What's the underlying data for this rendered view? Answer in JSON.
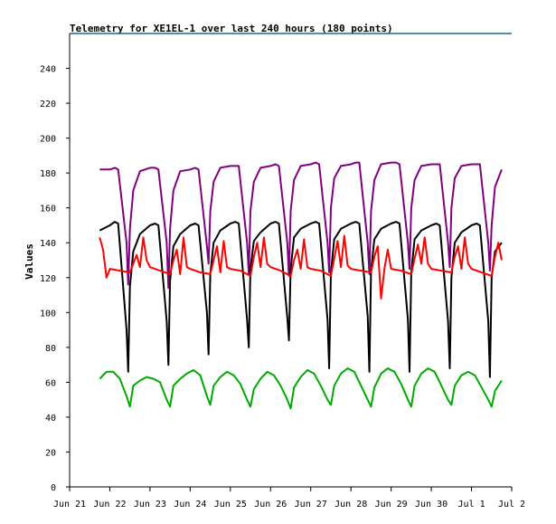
{
  "chart_data": {
    "type": "line",
    "title": "Telemetry for XE1EL-1 over last 240 hours (180 points)",
    "xlabel": "",
    "ylabel": "Values",
    "ylim": [
      0,
      260
    ],
    "yticks": [
      0,
      20,
      40,
      60,
      80,
      100,
      120,
      140,
      160,
      180,
      200,
      220,
      240
    ],
    "xlim": [
      "2016-06-21",
      "2016-07-02"
    ],
    "xticks": [
      "Jun 21",
      "Jun 22",
      "Jun 23",
      "Jun 24",
      "Jun 25",
      "Jun 26",
      "Jun 27",
      "Jun 28",
      "Jun 29",
      "Jun 30",
      "Jul 1",
      "Jul 2"
    ],
    "grid": false,
    "legend": "none",
    "series": [
      {
        "color": "#800080",
        "x": [
          "2016-06-21 18:00",
          "2016-06-22 00:00",
          "2016-06-22 03:00",
          "2016-06-22 05:00",
          "2016-06-22 10:00",
          "2016-06-22 11:00",
          "2016-06-22 12:00",
          "2016-06-22 14:00",
          "2016-06-22 18:00",
          "2016-06-23 00:00",
          "2016-06-23 03:00",
          "2016-06-23 05:00",
          "2016-06-23 10:00",
          "2016-06-23 11:00",
          "2016-06-23 12:00",
          "2016-06-23 14:00",
          "2016-06-23 18:00",
          "2016-06-24 00:00",
          "2016-06-24 03:00",
          "2016-06-24 05:00",
          "2016-06-24 10:00",
          "2016-06-24 11:00",
          "2016-06-24 12:00",
          "2016-06-24 14:00",
          "2016-06-24 18:00",
          "2016-06-25 00:00",
          "2016-06-25 03:00",
          "2016-06-25 05:00",
          "2016-06-25 10:00",
          "2016-06-25 11:00",
          "2016-06-25 12:00",
          "2016-06-25 14:00",
          "2016-06-25 18:00",
          "2016-06-26 00:00",
          "2016-06-26 03:00",
          "2016-06-26 05:00",
          "2016-06-26 10:00",
          "2016-06-26 11:00",
          "2016-06-26 12:00",
          "2016-06-26 14:00",
          "2016-06-26 18:00",
          "2016-06-27 00:00",
          "2016-06-27 03:00",
          "2016-06-27 05:00",
          "2016-06-27 10:00",
          "2016-06-27 11:00",
          "2016-06-27 12:00",
          "2016-06-27 14:00",
          "2016-06-27 18:00",
          "2016-06-28 00:00",
          "2016-06-28 03:00",
          "2016-06-28 05:00",
          "2016-06-28 10:00",
          "2016-06-28 11:00",
          "2016-06-28 12:00",
          "2016-06-28 14:00",
          "2016-06-28 18:00",
          "2016-06-29 00:00",
          "2016-06-29 03:00",
          "2016-06-29 05:00",
          "2016-06-29 10:00",
          "2016-06-29 11:00",
          "2016-06-29 12:00",
          "2016-06-29 14:00",
          "2016-06-29 18:00",
          "2016-06-30 00:00",
          "2016-06-30 03:00",
          "2016-06-30 05:00",
          "2016-06-30 10:00",
          "2016-06-30 11:00",
          "2016-06-30 12:00",
          "2016-06-30 14:00",
          "2016-06-30 18:00",
          "2016-07-01 00:00",
          "2016-07-01 03:00",
          "2016-07-01 05:00",
          "2016-07-01 10:00",
          "2016-07-01 11:00",
          "2016-07-01 12:00",
          "2016-07-01 14:00",
          "2016-07-01 18:00"
        ],
        "y": [
          182,
          182,
          183,
          182,
          140,
          116,
          148,
          170,
          181,
          183,
          183,
          182,
          140,
          114,
          148,
          170,
          181,
          182,
          183,
          182,
          138,
          128,
          158,
          175,
          183,
          184,
          184,
          184,
          140,
          122,
          158,
          175,
          183,
          184,
          185,
          184,
          140,
          121,
          158,
          176,
          184,
          185,
          186,
          185,
          140,
          123,
          160,
          177,
          184,
          185,
          186,
          186,
          140,
          122,
          158,
          176,
          185,
          186,
          186,
          185,
          140,
          125,
          160,
          176,
          184,
          185,
          185,
          185,
          140,
          126,
          160,
          177,
          184,
          185,
          185,
          185,
          140,
          124,
          150,
          172,
          182
        ]
      },
      {
        "color": "#000000",
        "x": [
          "2016-06-21 18:00",
          "2016-06-22 00:00",
          "2016-06-22 03:00",
          "2016-06-22 05:00",
          "2016-06-22 10:00",
          "2016-06-22 11:00",
          "2016-06-22 12:00",
          "2016-06-22 14:00",
          "2016-06-22 18:00",
          "2016-06-23 00:00",
          "2016-06-23 03:00",
          "2016-06-23 05:00",
          "2016-06-23 10:00",
          "2016-06-23 11:00",
          "2016-06-23 12:00",
          "2016-06-23 14:00",
          "2016-06-23 18:00",
          "2016-06-24 00:00",
          "2016-06-24 03:00",
          "2016-06-24 05:00",
          "2016-06-24 10:00",
          "2016-06-24 11:00",
          "2016-06-24 12:00",
          "2016-06-24 14:00",
          "2016-06-24 18:00",
          "2016-06-25 00:00",
          "2016-06-25 03:00",
          "2016-06-25 05:00",
          "2016-06-25 10:00",
          "2016-06-25 11:00",
          "2016-06-25 12:00",
          "2016-06-25 14:00",
          "2016-06-25 18:00",
          "2016-06-26 00:00",
          "2016-06-26 03:00",
          "2016-06-26 05:00",
          "2016-06-26 10:00",
          "2016-06-26 11:00",
          "2016-06-26 12:00",
          "2016-06-26 14:00",
          "2016-06-26 18:00",
          "2016-06-27 00:00",
          "2016-06-27 03:00",
          "2016-06-27 05:00",
          "2016-06-27 10:00",
          "2016-06-27 11:00",
          "2016-06-27 12:00",
          "2016-06-27 14:00",
          "2016-06-27 18:00",
          "2016-06-28 00:00",
          "2016-06-28 03:00",
          "2016-06-28 05:00",
          "2016-06-28 10:00",
          "2016-06-28 11:00",
          "2016-06-28 12:00",
          "2016-06-28 14:00",
          "2016-06-28 18:00",
          "2016-06-29 00:00",
          "2016-06-29 03:00",
          "2016-06-29 05:00",
          "2016-06-29 10:00",
          "2016-06-29 11:00",
          "2016-06-29 12:00",
          "2016-06-29 14:00",
          "2016-06-29 18:00",
          "2016-06-30 00:00",
          "2016-06-30 03:00",
          "2016-06-30 05:00",
          "2016-06-30 10:00",
          "2016-06-30 11:00",
          "2016-06-30 12:00",
          "2016-06-30 14:00",
          "2016-06-30 18:00",
          "2016-07-01 00:00",
          "2016-07-01 03:00",
          "2016-07-01 05:00",
          "2016-07-01 10:00",
          "2016-07-01 11:00",
          "2016-07-01 12:00",
          "2016-07-01 14:00",
          "2016-07-01 18:00"
        ],
        "y": [
          147,
          150,
          152,
          151,
          90,
          66,
          115,
          135,
          145,
          150,
          151,
          150,
          95,
          70,
          118,
          138,
          145,
          150,
          151,
          150,
          100,
          76,
          122,
          140,
          147,
          151,
          152,
          151,
          96,
          80,
          125,
          141,
          146,
          151,
          152,
          151,
          97,
          84,
          125,
          143,
          148,
          151,
          152,
          151,
          96,
          68,
          123,
          142,
          148,
          151,
          152,
          151,
          98,
          66,
          124,
          142,
          148,
          151,
          152,
          151,
          96,
          66,
          123,
          142,
          147,
          150,
          151,
          150,
          95,
          68,
          120,
          140,
          146,
          150,
          151,
          150,
          95,
          63,
          120,
          135,
          140
        ]
      },
      {
        "color": "#ff0000",
        "x": [
          "2016-06-21 18:00",
          "2016-06-21 20:00",
          "2016-06-21 22:00",
          "2016-06-22 00:00",
          "2016-06-22 06:00",
          "2016-06-22 12:00",
          "2016-06-22 14:00",
          "2016-06-22 16:00",
          "2016-06-22 18:00",
          "2016-06-22 20:00",
          "2016-06-22 22:00",
          "2016-06-23 00:00",
          "2016-06-23 06:00",
          "2016-06-23 12:00",
          "2016-06-23 14:00",
          "2016-06-23 16:00",
          "2016-06-23 18:00",
          "2016-06-23 20:00",
          "2016-06-23 22:00",
          "2016-06-24 00:00",
          "2016-06-24 06:00",
          "2016-06-24 12:00",
          "2016-06-24 14:00",
          "2016-06-24 16:00",
          "2016-06-24 18:00",
          "2016-06-24 20:00",
          "2016-06-24 22:00",
          "2016-06-25 00:00",
          "2016-06-25 06:00",
          "2016-06-25 12:00",
          "2016-06-25 14:00",
          "2016-06-25 16:00",
          "2016-06-25 18:00",
          "2016-06-25 20:00",
          "2016-06-25 22:00",
          "2016-06-26 00:00",
          "2016-06-26 06:00",
          "2016-06-26 12:00",
          "2016-06-26 14:00",
          "2016-06-26 16:00",
          "2016-06-26 18:00",
          "2016-06-26 20:00",
          "2016-06-26 22:00",
          "2016-06-27 00:00",
          "2016-06-27 06:00",
          "2016-06-27 12:00",
          "2016-06-27 14:00",
          "2016-06-27 16:00",
          "2016-06-27 18:00",
          "2016-06-27 20:00",
          "2016-06-27 22:00",
          "2016-06-28 00:00",
          "2016-06-28 06:00",
          "2016-06-28 12:00",
          "2016-06-28 14:00",
          "2016-06-28 16:00",
          "2016-06-28 18:00",
          "2016-06-28 20:00",
          "2016-06-28 22:00",
          "2016-06-29 00:00",
          "2016-06-29 06:00",
          "2016-06-29 12:00",
          "2016-06-29 14:00",
          "2016-06-29 16:00",
          "2016-06-29 18:00",
          "2016-06-29 20:00",
          "2016-06-29 22:00",
          "2016-06-30 00:00",
          "2016-06-30 06:00",
          "2016-06-30 12:00",
          "2016-06-30 14:00",
          "2016-06-30 16:00",
          "2016-06-30 18:00",
          "2016-06-30 20:00",
          "2016-06-30 22:00",
          "2016-07-01 00:00",
          "2016-07-01 06:00",
          "2016-07-01 12:00",
          "2016-07-01 14:00",
          "2016-07-01 16:00",
          "2016-07-01 18:00"
        ],
        "y": [
          143,
          136,
          120,
          125,
          124,
          123,
          128,
          133,
          126,
          143,
          130,
          126,
          124,
          122,
          130,
          136,
          122,
          143,
          126,
          125,
          123,
          122,
          130,
          138,
          123,
          141,
          126,
          125,
          124,
          121,
          132,
          140,
          126,
          143,
          128,
          126,
          124,
          121,
          130,
          136,
          125,
          142,
          126,
          125,
          124,
          121,
          131,
          141,
          126,
          144,
          127,
          125,
          124,
          123,
          132,
          138,
          108,
          125,
          136,
          125,
          124,
          122,
          131,
          139,
          128,
          143,
          128,
          125,
          124,
          123,
          132,
          138,
          125,
          143,
          128,
          125,
          123,
          121,
          132,
          140,
          130
        ]
      },
      {
        "color": "#00aa00",
        "x": [
          "2016-06-21 18:00",
          "2016-06-21 22:00",
          "2016-06-22 02:00",
          "2016-06-22 06:00",
          "2016-06-22 10:00",
          "2016-06-22 12:00",
          "2016-06-22 14:00",
          "2016-06-22 18:00",
          "2016-06-22 22:00",
          "2016-06-23 02:00",
          "2016-06-23 06:00",
          "2016-06-23 10:00",
          "2016-06-23 12:00",
          "2016-06-23 14:00",
          "2016-06-23 18:00",
          "2016-06-23 22:00",
          "2016-06-24 02:00",
          "2016-06-24 06:00",
          "2016-06-24 10:00",
          "2016-06-24 12:00",
          "2016-06-24 14:00",
          "2016-06-24 18:00",
          "2016-06-24 22:00",
          "2016-06-25 02:00",
          "2016-06-25 06:00",
          "2016-06-25 10:00",
          "2016-06-25 12:00",
          "2016-06-25 14:00",
          "2016-06-25 18:00",
          "2016-06-25 22:00",
          "2016-06-26 02:00",
          "2016-06-26 06:00",
          "2016-06-26 10:00",
          "2016-06-26 12:00",
          "2016-06-26 14:00",
          "2016-06-26 18:00",
          "2016-06-26 22:00",
          "2016-06-27 02:00",
          "2016-06-27 06:00",
          "2016-06-27 10:00",
          "2016-06-27 12:00",
          "2016-06-27 14:00",
          "2016-06-27 18:00",
          "2016-06-27 22:00",
          "2016-06-28 02:00",
          "2016-06-28 06:00",
          "2016-06-28 10:00",
          "2016-06-28 12:00",
          "2016-06-28 14:00",
          "2016-06-28 18:00",
          "2016-06-28 22:00",
          "2016-06-29 02:00",
          "2016-06-29 06:00",
          "2016-06-29 10:00",
          "2016-06-29 12:00",
          "2016-06-29 14:00",
          "2016-06-29 18:00",
          "2016-06-29 22:00",
          "2016-06-30 02:00",
          "2016-06-30 06:00",
          "2016-06-30 10:00",
          "2016-06-30 12:00",
          "2016-06-30 14:00",
          "2016-06-30 18:00",
          "2016-06-30 22:00",
          "2016-07-01 02:00",
          "2016-07-01 06:00",
          "2016-07-01 10:00",
          "2016-07-01 12:00",
          "2016-07-01 14:00",
          "2016-07-01 18:00"
        ],
        "y": [
          62,
          66,
          66,
          62,
          52,
          46,
          58,
          61,
          63,
          62,
          60,
          50,
          46,
          58,
          62,
          65,
          67,
          64,
          52,
          47,
          58,
          63,
          66,
          64,
          59,
          50,
          46,
          56,
          62,
          66,
          64,
          58,
          50,
          45,
          57,
          63,
          67,
          65,
          58,
          50,
          47,
          58,
          65,
          68,
          66,
          58,
          50,
          46,
          57,
          65,
          68,
          66,
          59,
          50,
          46,
          58,
          65,
          68,
          66,
          58,
          50,
          47,
          58,
          64,
          66,
          64,
          57,
          50,
          46,
          55,
          61
        ]
      }
    ]
  }
}
